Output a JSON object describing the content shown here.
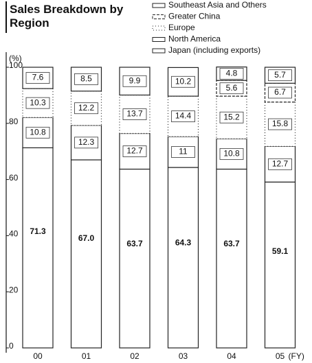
{
  "chart_data": {
    "type": "stacked_bar",
    "title": "Sales Breakdown by Region",
    "y_label": "(%)",
    "x_label": "(FY)",
    "categories": [
      "00",
      "01",
      "02",
      "03",
      "04",
      "05"
    ],
    "series": [
      {
        "name": "Japan (including exports)",
        "color": "#ffffff",
        "border": "solid",
        "values": [
          71.3,
          67.0,
          63.7,
          64.3,
          63.7,
          59.1
        ],
        "value_labels": [
          "71.3",
          "67.0",
          "63.7",
          "64.3",
          "63.7",
          "59.1"
        ]
      },
      {
        "name": "North America",
        "color": "#ffffff",
        "border": "solid",
        "values": [
          10.8,
          12.3,
          12.7,
          11.0,
          10.8,
          12.7
        ]
      },
      {
        "name": "Europe",
        "color": "#ffffff",
        "border": "dotted",
        "values": [
          10.3,
          12.2,
          13.7,
          14.4,
          15.2,
          15.8
        ]
      },
      {
        "name": "Greater China",
        "color": "#ffffff",
        "border": "dashed",
        "values": [
          null,
          null,
          null,
          null,
          5.6,
          6.7
        ]
      },
      {
        "name": "Southeast Asia and Others",
        "color": "#ffffff",
        "border": "solid",
        "values": [
          7.6,
          8.5,
          9.9,
          10.2,
          4.8,
          5.7
        ]
      }
    ],
    "ylim": [
      0,
      100
    ],
    "yticks": [
      0,
      20,
      40,
      60,
      80,
      100
    ],
    "legend": "top-right"
  }
}
